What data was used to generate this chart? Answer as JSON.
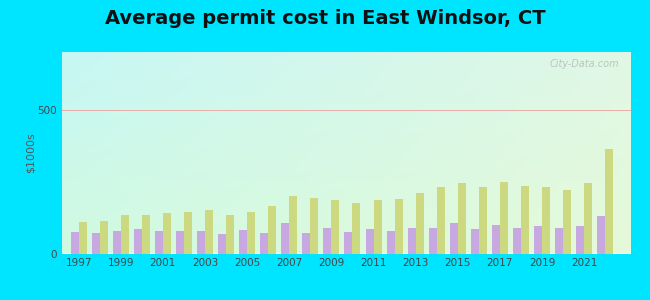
{
  "title": "Average permit cost in East Windsor, CT",
  "ylabel": "$1000s",
  "years": [
    1997,
    1998,
    1999,
    2000,
    2001,
    2002,
    2003,
    2004,
    2005,
    2006,
    2007,
    2008,
    2009,
    2010,
    2011,
    2012,
    2013,
    2014,
    2015,
    2016,
    2017,
    2018,
    2019,
    2020,
    2021,
    2022
  ],
  "east_windsor": [
    75,
    72,
    80,
    85,
    80,
    80,
    80,
    68,
    82,
    72,
    105,
    72,
    88,
    75,
    85,
    78,
    88,
    90,
    105,
    85,
    100,
    90,
    95,
    88,
    95,
    130
  ],
  "ct_average": [
    110,
    112,
    135,
    135,
    140,
    145,
    150,
    135,
    145,
    165,
    200,
    195,
    185,
    175,
    185,
    190,
    210,
    230,
    245,
    230,
    250,
    235,
    230,
    220,
    245,
    365
  ],
  "town_color": "#c8a8e0",
  "ct_color": "#ccd980",
  "outer_bg": "#00e5ff",
  "ylim": [
    0,
    700
  ],
  "yticks": [
    0,
    500
  ],
  "title_fontsize": 14,
  "legend_fontsize": 9,
  "bar_width": 0.38,
  "watermark": "City-Data.com",
  "bg_colors_lr": [
    "#b8f0f0",
    "#e8f5e8"
  ],
  "bg_colors_tb": [
    "#d0f0f8",
    "#e0f8e8"
  ]
}
